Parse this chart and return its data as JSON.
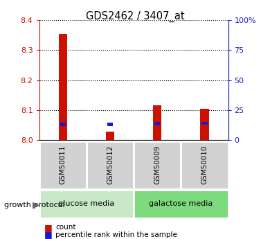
{
  "title": "GDS2462 / 3407_at",
  "samples": [
    "GSM50011",
    "GSM50012",
    "GSM50009",
    "GSM50010"
  ],
  "red_tops": [
    8.355,
    8.028,
    8.115,
    8.103
  ],
  "blue_bottoms": [
    8.047,
    8.046,
    8.048,
    8.05
  ],
  "blue_tops": [
    8.058,
    8.058,
    8.059,
    8.061
  ],
  "y_min": 8.0,
  "y_max": 8.4,
  "y_ticks": [
    8.0,
    8.1,
    8.2,
    8.3,
    8.4
  ],
  "y_right_ticks_val": [
    8.0,
    8.1,
    8.2,
    8.3,
    8.4
  ],
  "y_right_labels": [
    "0",
    "25",
    "50",
    "75",
    "100%"
  ],
  "groups": [
    {
      "label": "glucose media",
      "cols": [
        0,
        1
      ],
      "color": "#c8e8c8"
    },
    {
      "label": "galactose media",
      "cols": [
        2,
        3
      ],
      "color": "#7ddb7d"
    }
  ],
  "bar_color_red": "#cc1100",
  "bar_color_blue": "#1a1acc",
  "bar_width": 0.18,
  "blue_bar_width": 0.12,
  "sample_box_color": "#d2d2d2",
  "legend_count_label": "count",
  "legend_pct_label": "percentile rank within the sample",
  "growth_protocol_label": "growth protocol",
  "left_axis_color": "#cc1100",
  "right_axis_color": "#1a1acc",
  "bg_color": "#ffffff"
}
